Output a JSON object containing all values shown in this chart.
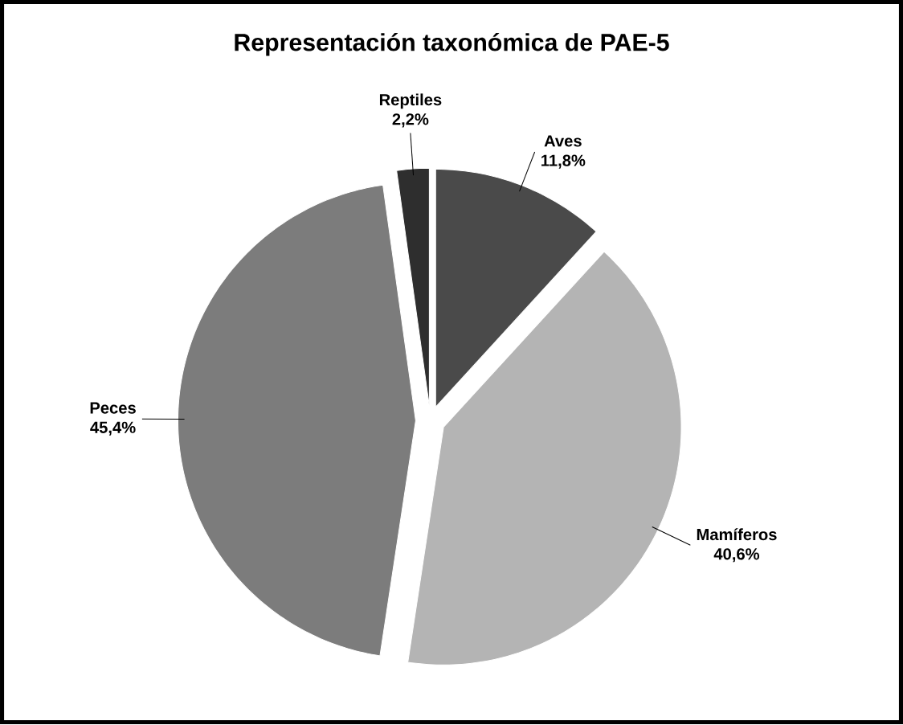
{
  "chart_data": {
    "type": "pie",
    "title": "Representación taxonómica de PAE-5",
    "categories": [
      "Aves",
      "Mamíferos",
      "Peces",
      "Reptiles"
    ],
    "values": [
      11.8,
      40.6,
      45.4,
      2.2
    ],
    "colors": [
      "#4a4a4a",
      "#b4b4b4",
      "#7c7c7c",
      "#2e2e2e"
    ],
    "value_labels": [
      "11,8%",
      "40,6%",
      "45,4%",
      "2,2%"
    ]
  }
}
